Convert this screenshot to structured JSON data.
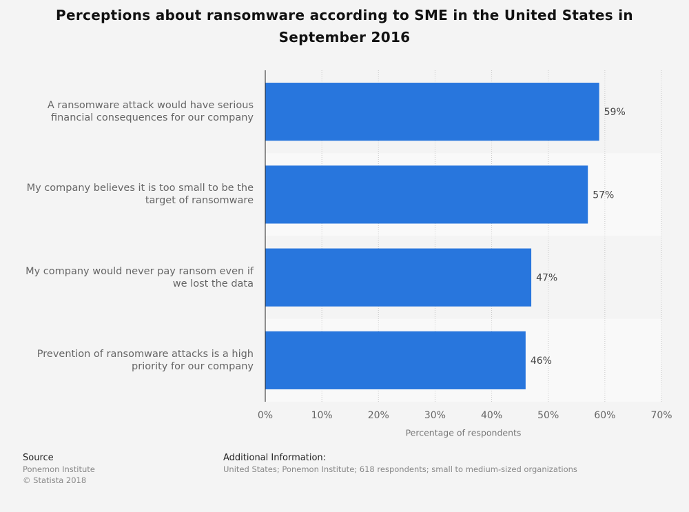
{
  "chart_data": {
    "type": "bar",
    "orientation": "horizontal",
    "title": "Perceptions about ransomware according to SME in the United States in September 2016",
    "categories": [
      "A ransomware attack would have serious financial consequences for our company",
      "My company believes it is too small to be the target of ransomware",
      "My company would never pay ransom even if we lost the data",
      "Prevention of ransomware attacks is a high priority for our company"
    ],
    "values": [
      59,
      57,
      47,
      46
    ],
    "value_labels": [
      "59%",
      "57%",
      "47%",
      "46%"
    ],
    "color": "#2876dd",
    "xlabel": "Percentage of respondents",
    "xlim": [
      0,
      70
    ],
    "xticks": [
      {
        "value": 0,
        "label": "0%"
      },
      {
        "value": 10,
        "label": "10%"
      },
      {
        "value": 20,
        "label": "20%"
      },
      {
        "value": 30,
        "label": "30%"
      },
      {
        "value": 40,
        "label": "40%"
      },
      {
        "value": 50,
        "label": "50%"
      },
      {
        "value": 60,
        "label": "60%"
      },
      {
        "value": 70,
        "label": "70%"
      }
    ],
    "grid": true
  },
  "footer": {
    "source_heading": "Source",
    "source_lines": [
      "Ponemon Institute",
      "© Statista 2018"
    ],
    "info_heading": "Additional Information:",
    "info_text": "United States; Ponemon Institute; 618 respondents; small to medium-sized organizations"
  }
}
